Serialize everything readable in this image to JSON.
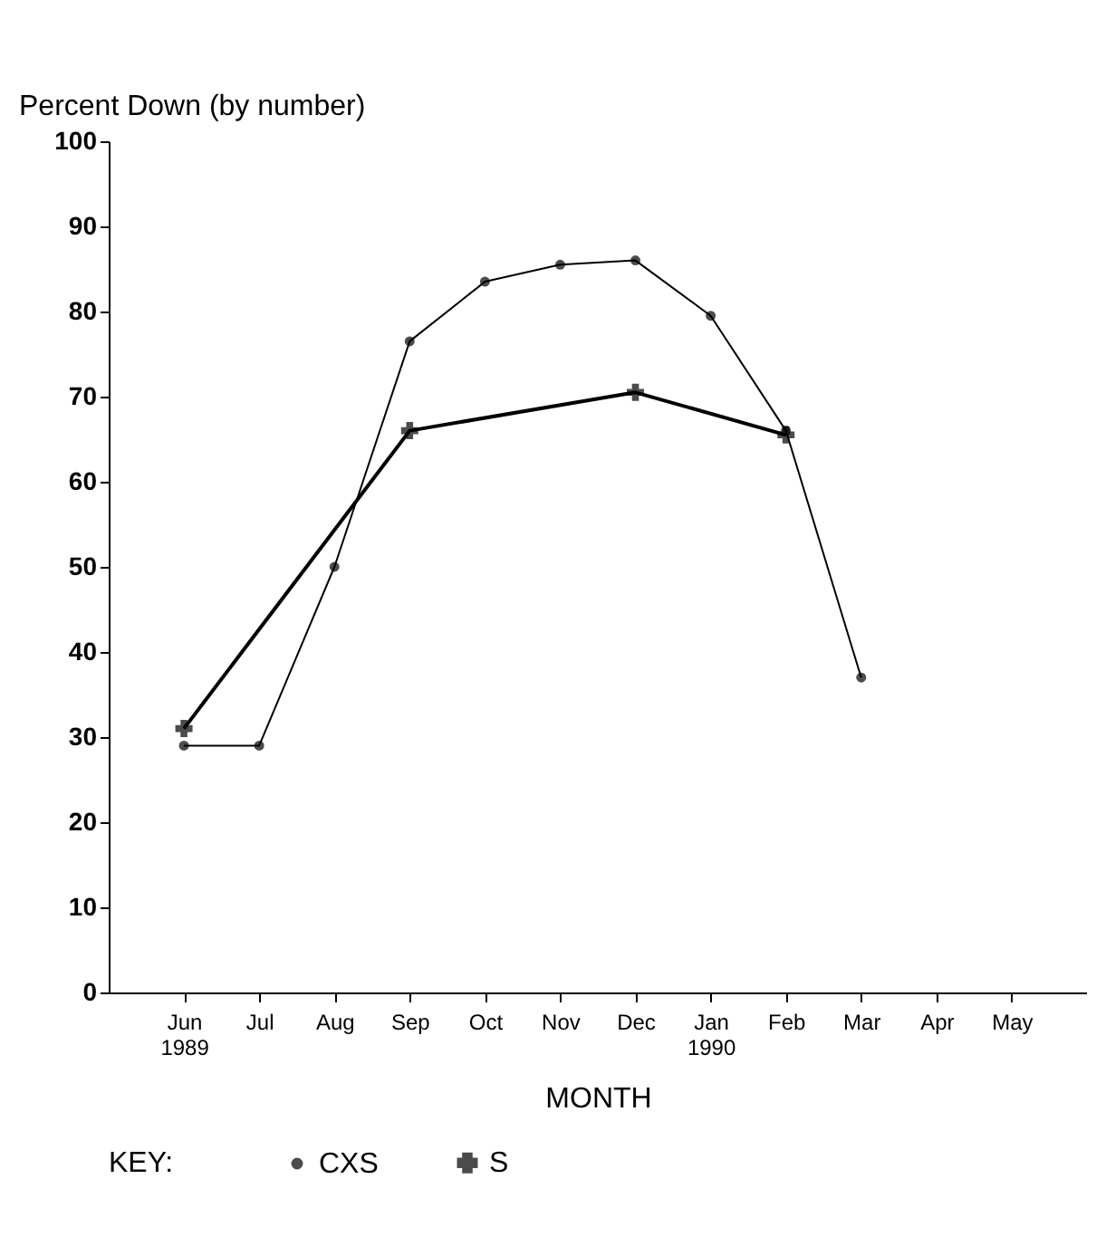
{
  "chart_data": {
    "type": "line",
    "xlabel": "MONTH",
    "ylabel": "Percent Down (by number)",
    "legend_title": "KEY:",
    "categories": [
      "Jun 1989",
      "Jul",
      "Aug",
      "Sep",
      "Oct",
      "Nov",
      "Dec",
      "Jan 1990",
      "Feb",
      "Mar",
      "Apr",
      "May"
    ],
    "series": [
      {
        "name": "CXS",
        "color": "#000000",
        "marker": "circle",
        "values": [
          29,
          29,
          50,
          76.5,
          83.5,
          85.5,
          86,
          79.5,
          66,
          37,
          null,
          null
        ]
      },
      {
        "name": "S",
        "color": "#000000",
        "marker": "cross",
        "values": [
          31,
          null,
          null,
          66,
          null,
          null,
          70.5,
          null,
          65.5,
          null,
          null,
          null
        ]
      }
    ],
    "ylim": [
      0,
      100
    ],
    "yticks": [
      0,
      10,
      20,
      30,
      40,
      50,
      60,
      70,
      80,
      90,
      100
    ],
    "grid": false,
    "legend": "bottom",
    "line_style": "solid"
  }
}
